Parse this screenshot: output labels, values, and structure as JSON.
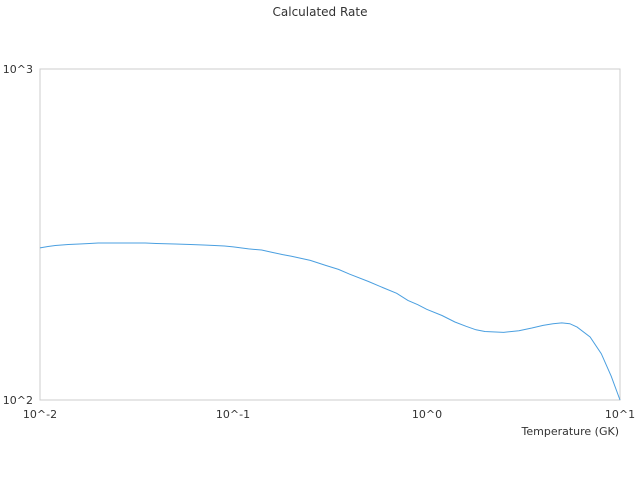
{
  "chart_data": {
    "type": "line",
    "title": "Calculated Rate",
    "xlabel": "Temperature (GK)",
    "ylabel": "",
    "x_scale": "log",
    "y_scale": "log",
    "xlim": [
      0.01,
      10
    ],
    "ylim": [
      100,
      1000
    ],
    "x_ticks": [
      "10^-2",
      "10^-1",
      "10^0",
      "10^1"
    ],
    "y_ticks": [
      "10^2",
      "10^3"
    ],
    "grid": false,
    "legend": "none",
    "series": [
      {
        "color": "#4a9fe0",
        "x": [
          0.01,
          0.011,
          0.012,
          0.014,
          0.016,
          0.018,
          0.02,
          0.025,
          0.03,
          0.035,
          0.04,
          0.05,
          0.06,
          0.07,
          0.08,
          0.09,
          0.1,
          0.12,
          0.14,
          0.16,
          0.18,
          0.2,
          0.25,
          0.3,
          0.35,
          0.4,
          0.5,
          0.6,
          0.7,
          0.8,
          0.9,
          1.0,
          1.2,
          1.4,
          1.6,
          1.8,
          2.0,
          2.5,
          3.0,
          3.5,
          4.0,
          4.5,
          5.0,
          5.5,
          6.0,
          7.0,
          8.0,
          9.0,
          10.0
        ],
        "y": [
          288,
          291,
          293,
          295,
          296,
          297,
          298,
          298,
          298,
          298,
          297,
          296,
          295,
          294,
          293,
          292,
          290,
          286,
          284,
          279,
          275,
          272,
          264,
          255,
          248,
          240,
          228,
          218,
          210,
          200,
          194,
          188,
          180,
          172,
          167,
          163,
          161,
          160,
          162,
          165,
          168,
          170,
          171,
          170,
          166,
          155,
          138,
          118,
          100
        ]
      }
    ]
  }
}
